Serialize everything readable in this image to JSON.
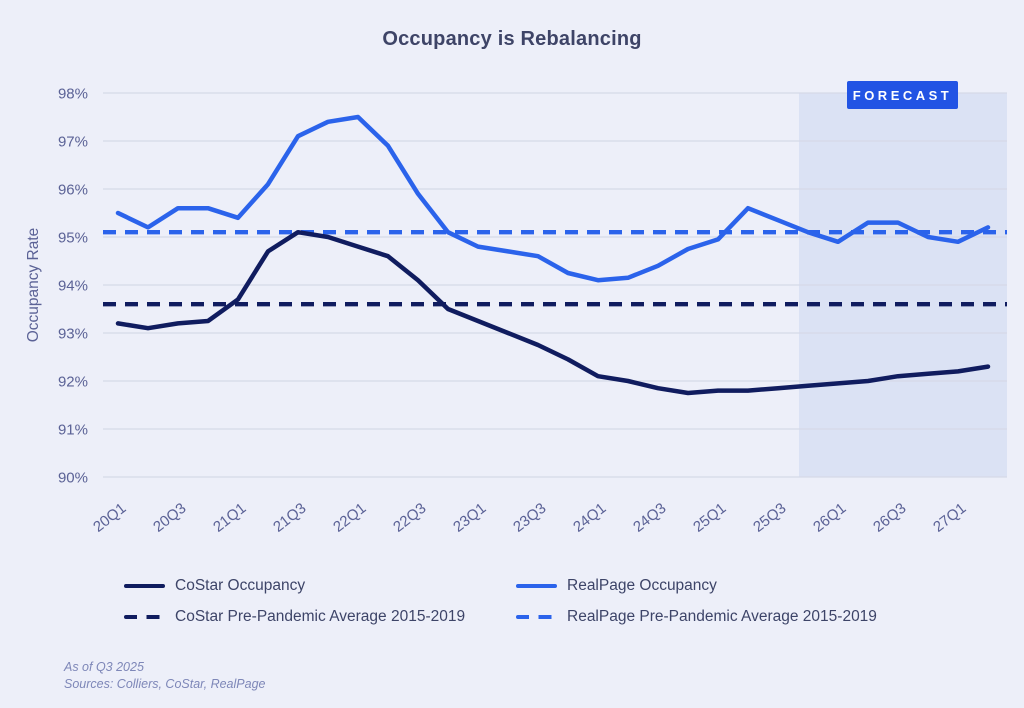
{
  "title": "Occupancy is Rebalancing",
  "forecast": {
    "label": "FORECAST"
  },
  "chart_data": {
    "type": "line",
    "title": "Occupancy is Rebalancing",
    "xlabel": "",
    "ylabel": "Occupancy Rate",
    "ylim": [
      90,
      98
    ],
    "y_tick_labels": [
      "90%",
      "91%",
      "92%",
      "93%",
      "94%",
      "95%",
      "96%",
      "97%",
      "98%"
    ],
    "grid": "horizontal",
    "legend_position": "bottom",
    "categories": [
      "20Q1",
      "20Q2",
      "20Q3",
      "20Q4",
      "21Q1",
      "21Q2",
      "21Q3",
      "21Q4",
      "22Q1",
      "22Q2",
      "22Q3",
      "22Q4",
      "23Q1",
      "23Q2",
      "23Q3",
      "23Q4",
      "24Q1",
      "24Q2",
      "24Q3",
      "24Q4",
      "25Q1",
      "25Q2",
      "25Q3",
      "25Q4",
      "26Q1",
      "26Q2",
      "26Q3",
      "26Q4",
      "27Q1",
      "27Q2"
    ],
    "x_tick_labels": [
      "20Q1",
      "20Q3",
      "21Q1",
      "21Q3",
      "22Q1",
      "22Q3",
      "23Q1",
      "23Q3",
      "24Q1",
      "24Q3",
      "25Q1",
      "25Q3",
      "26Q1",
      "26Q3",
      "27Q1"
    ],
    "series": [
      {
        "name": "CoStar Occupancy",
        "style": "solid",
        "color_key": "navy",
        "values": [
          93.2,
          93.1,
          93.2,
          93.25,
          93.7,
          94.7,
          95.1,
          95.0,
          94.8,
          94.6,
          94.1,
          93.5,
          93.25,
          93.0,
          92.75,
          92.45,
          92.1,
          92.0,
          91.85,
          91.75,
          91.8,
          91.8,
          91.85,
          91.9,
          91.95,
          92.0,
          92.1,
          92.15,
          92.2,
          92.3
        ]
      },
      {
        "name": "RealPage Occupancy",
        "style": "solid",
        "color_key": "blue",
        "values": [
          95.5,
          95.2,
          95.6,
          95.6,
          95.4,
          96.1,
          97.1,
          97.4,
          97.5,
          96.9,
          95.9,
          95.1,
          94.8,
          94.7,
          94.6,
          94.25,
          94.1,
          94.15,
          94.4,
          94.75,
          94.95,
          95.6,
          95.35,
          95.1,
          94.9,
          95.3,
          95.3,
          95.0,
          94.9,
          95.2
        ]
      },
      {
        "name": "CoStar Pre-Pandemic Average 2015-2019",
        "style": "dashed",
        "color_key": "navy",
        "constant_value": 93.6
      },
      {
        "name": "RealPage Pre-Pandemic Average 2015-2019",
        "style": "dashed",
        "color_key": "blue",
        "constant_value": 95.1
      }
    ],
    "forecast_region": {
      "label": "FORECAST",
      "start_category": "25Q4",
      "end": "right-edge"
    }
  },
  "legend": {
    "items": [
      {
        "label": "CoStar Occupancy",
        "style": "solid",
        "color_key": "navy"
      },
      {
        "label": "RealPage Occupancy",
        "style": "solid",
        "color_key": "blue"
      },
      {
        "label": "CoStar Pre-Pandemic Average 2015-2019",
        "style": "dashed",
        "color_key": "navy"
      },
      {
        "label": "RealPage Pre-Pandemic Average 2015-2019",
        "style": "dashed",
        "color_key": "blue"
      }
    ]
  },
  "footer": {
    "as_of": "As of Q3 2025",
    "sources": "Sources: Colliers, CoStar, RealPage"
  },
  "colors": {
    "navy": "#101c5f",
    "blue": "#2b63eb",
    "forecast_badge": "#2254e4",
    "forecast_band": "#dbe2f4",
    "background": "#edeff9",
    "gridline": "#d6d9e8",
    "axis_text": "#5b6296",
    "title_text": "#3e4467",
    "legend_text": "#3d4468",
    "footer_text": "#7e87b8"
  }
}
